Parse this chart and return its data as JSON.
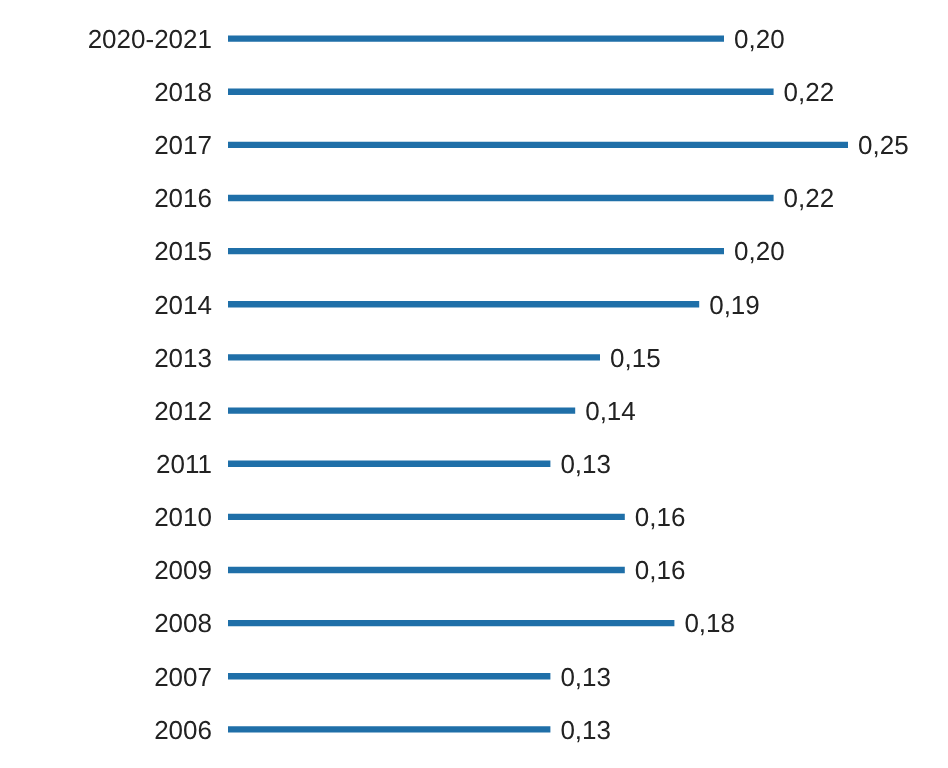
{
  "chart_data": {
    "type": "bar",
    "orientation": "horizontal",
    "categories": [
      "2020-2021",
      "2018",
      "2017",
      "2016",
      "2015",
      "2014",
      "2013",
      "2012",
      "2011",
      "2010",
      "2009",
      "2008",
      "2007",
      "2006"
    ],
    "values": [
      0.2,
      0.22,
      0.25,
      0.22,
      0.2,
      0.19,
      0.15,
      0.14,
      0.13,
      0.16,
      0.16,
      0.18,
      0.13,
      0.13
    ],
    "value_labels": [
      "0,20",
      "0,22",
      "0,25",
      "0,22",
      "0,20",
      "0,19",
      "0,15",
      "0,14",
      "0,13",
      "0,16",
      "0,16",
      "0,18",
      "0,13",
      "0,13"
    ],
    "color": "#1f6fa8",
    "grid": false,
    "legend": false
  }
}
